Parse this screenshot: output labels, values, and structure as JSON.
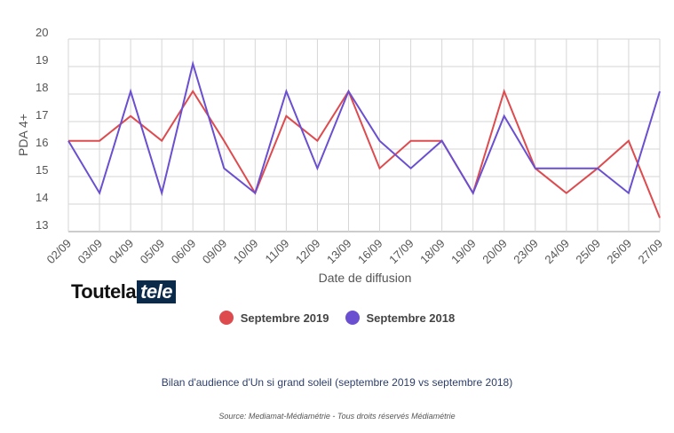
{
  "chart_data": {
    "type": "line",
    "categories": [
      "02/09",
      "03/09",
      "04/09",
      "05/09",
      "06/09",
      "09/09",
      "10/09",
      "11/09",
      "12/09",
      "13/09",
      "16/09",
      "17/09",
      "18/09",
      "19/09",
      "20/09",
      "23/09",
      "24/09",
      "25/09",
      "26/09",
      "27/09"
    ],
    "series": [
      {
        "name": "Septembre 2019",
        "color": "#dd4b4f",
        "values": [
          16.3,
          16.3,
          17.2,
          16.3,
          18.1,
          16.3,
          14.4,
          17.2,
          16.3,
          18.1,
          15.3,
          16.3,
          16.3,
          14.4,
          18.1,
          15.3,
          14.4,
          15.3,
          16.3,
          13.5
        ]
      },
      {
        "name": "Septembre 2018",
        "color": "#6a4fd0",
        "values": [
          16.3,
          14.4,
          18.1,
          14.4,
          19.1,
          15.3,
          14.4,
          18.1,
          15.3,
          18.1,
          16.3,
          15.3,
          16.3,
          14.4,
          17.2,
          15.3,
          15.3,
          15.3,
          14.4,
          18.1
        ]
      }
    ],
    "y_ticks": [
      13,
      14,
      15,
      16,
      17,
      18,
      19,
      20
    ],
    "ylim": [
      13,
      20
    ],
    "ylabel": "PDA 4+",
    "xlabel": "Date de diffusion",
    "grid": true,
    "legend_position": "bottom"
  },
  "logo": {
    "part1": "Toutela",
    "part2": "tele"
  },
  "caption": "Bilan d'audience d'Un si grand soleil (septembre 2019 vs septembre 2018)",
  "source": "Source: Mediamat-Médiamétrie - Tous droits réservés Médiamétrie"
}
